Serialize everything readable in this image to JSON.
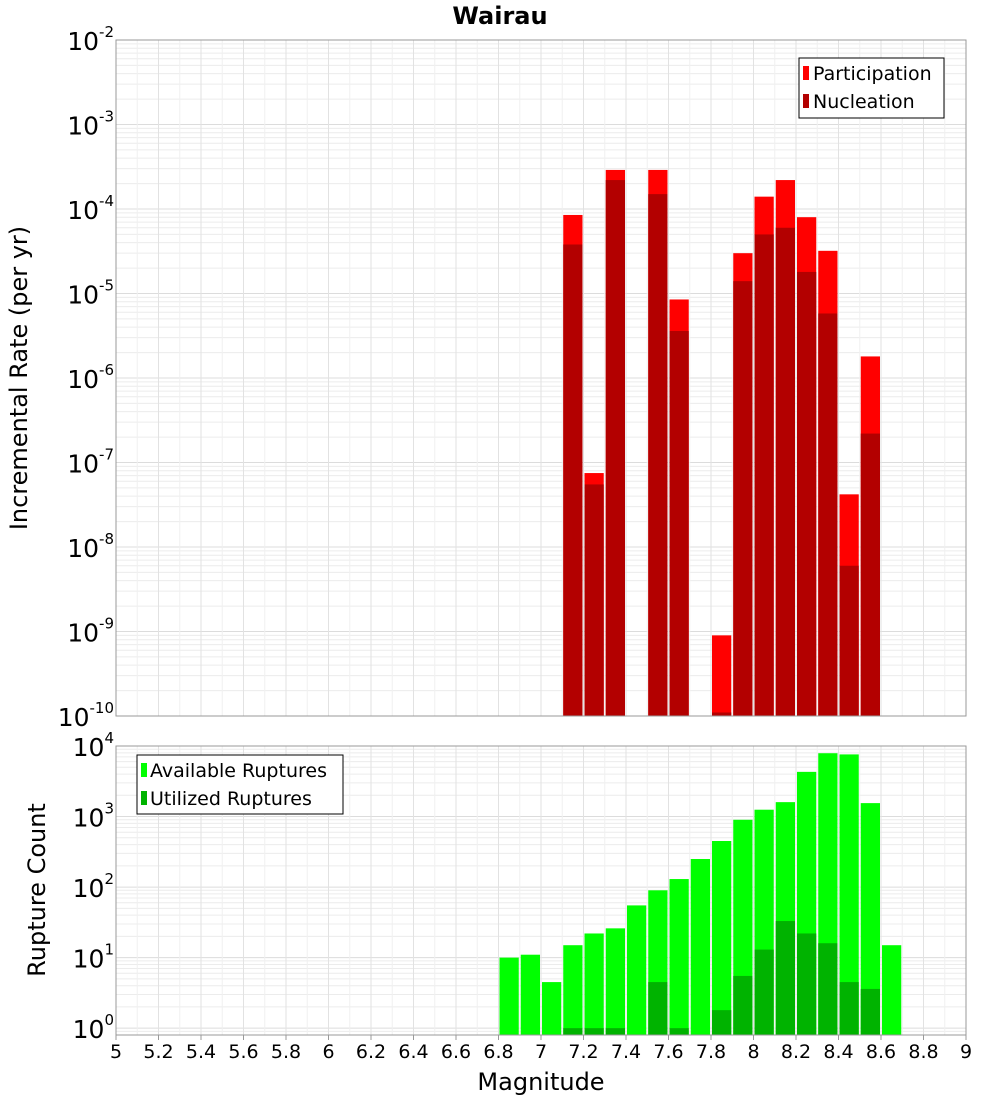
{
  "chart_data": [
    {
      "type": "bar",
      "title": "Wairau",
      "ylabel": "Incremental Rate (per yr)",
      "yscale": "log",
      "ylim": [
        1e-10,
        0.01
      ],
      "xlim": [
        5,
        9
      ],
      "ytick_exponents": [
        "-10",
        "-9",
        "-8",
        "-7",
        "-6",
        "-5",
        "-4",
        "-3",
        "-2"
      ],
      "legend": {
        "position": "top-right",
        "entries": [
          "Participation",
          "Nucleation"
        ]
      },
      "colors": {
        "Participation": "#ff0000",
        "Nucleation": "#b30000"
      },
      "bin_width": 0.1,
      "x": [
        7.15,
        7.25,
        7.35,
        7.55,
        7.65,
        7.85,
        7.95,
        8.05,
        8.15,
        8.25,
        8.35,
        8.45,
        8.55
      ],
      "series": [
        {
          "name": "Participation",
          "values": [
            8.5e-05,
            7.5e-08,
            0.00029,
            0.00029,
            8.5e-06,
            9e-10,
            3e-05,
            0.00014,
            0.00022,
            8e-05,
            3.2e-05,
            4.2e-08,
            1.8e-06
          ]
        },
        {
          "name": "Nucleation",
          "values": [
            3.8e-05,
            5.5e-08,
            0.00022,
            0.00015,
            3.6e-06,
            1.1e-10,
            1.4e-05,
            5e-05,
            6e-05,
            1.8e-05,
            5.8e-06,
            6e-09,
            2.2e-07
          ]
        }
      ]
    },
    {
      "type": "bar",
      "xlabel": "Magnitude",
      "ylabel": "Rupture Count",
      "yscale": "log",
      "ylim": [
        0.8,
        10000
      ],
      "xlim": [
        5,
        9
      ],
      "xticks": [
        "5",
        "5.2",
        "5.4",
        "5.6",
        "5.8",
        "6",
        "6.2",
        "6.4",
        "6.6",
        "6.8",
        "7",
        "7.2",
        "7.4",
        "7.6",
        "7.8",
        "8",
        "8.2",
        "8.4",
        "8.6",
        "8.8",
        "9"
      ],
      "ytick_exponents": [
        "0",
        "1",
        "2",
        "3",
        "4"
      ],
      "legend": {
        "position": "top-left",
        "entries": [
          "Available Ruptures",
          "Utilized Ruptures"
        ]
      },
      "colors": {
        "Available Ruptures": "#00ff00",
        "Utilized Ruptures": "#00b300"
      },
      "bin_width": 0.1,
      "x": [
        6.85,
        6.95,
        7.05,
        7.15,
        7.25,
        7.35,
        7.45,
        7.55,
        7.65,
        7.75,
        7.85,
        7.95,
        8.05,
        8.15,
        8.25,
        8.35,
        8.45,
        8.55,
        8.65
      ],
      "series": [
        {
          "name": "Available Ruptures",
          "values": [
            10,
            11,
            4.5,
            15,
            22,
            26,
            55,
            90,
            130,
            250,
            450,
            900,
            1250,
            1600,
            4300,
            7900,
            7600,
            1550,
            15
          ]
        },
        {
          "name": "Utilized Ruptures",
          "values": [
            null,
            null,
            null,
            1,
            1,
            1,
            null,
            4.5,
            1,
            null,
            1.8,
            5.5,
            13,
            33,
            22,
            16,
            4.5,
            3.6,
            null
          ]
        }
      ]
    }
  ]
}
